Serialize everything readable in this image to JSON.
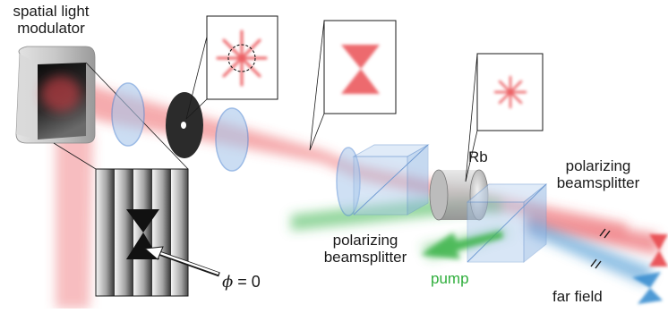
{
  "labels": {
    "slm_line1": "spatial light",
    "slm_line2": "modulator",
    "rb": "Rb",
    "pbs_right_line1": "polarizing",
    "pbs_right_line2": "beamsplitter",
    "pbs_left_line1": "polarizing",
    "pbs_left_line2": "beamsplitter",
    "pump": "pump",
    "far_field": "far field",
    "phase_symbol": "ϕ",
    "phase_value": " = 0"
  },
  "colors": {
    "beam_red": "#e8454a",
    "beam_green": "#3cb44b",
    "beam_blue": "#3a8fd0",
    "glass_blue": "#a9c8ec",
    "lens_blue": "#5b8fd6",
    "pump_text": "#2fae3c"
  }
}
